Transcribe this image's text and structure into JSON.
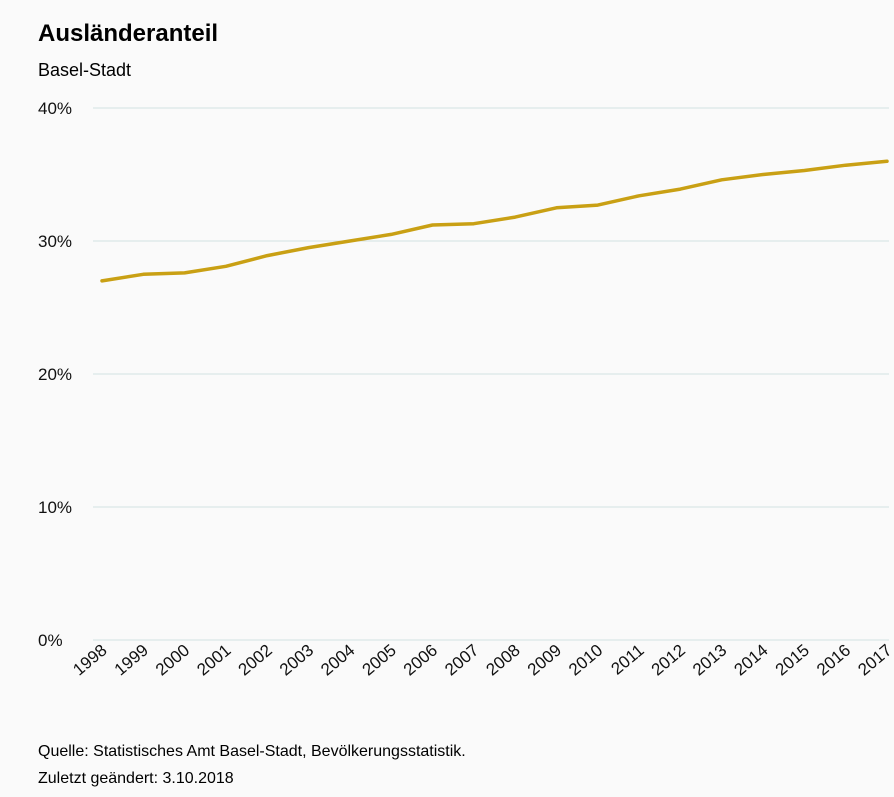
{
  "title": "Ausländeranteil",
  "subtitle": "Basel-Stadt",
  "source": "Quelle: Statistisches Amt Basel-Stadt, Bevölkerungsstatistik.",
  "updated": "Zuletzt geändert: 3.10.2018",
  "colors": {
    "line": "#c9a014",
    "grid": "#d3e1e3",
    "background": "#fafafa"
  },
  "chart_data": {
    "type": "line",
    "title": "Ausländeranteil",
    "subtitle": "Basel-Stadt",
    "xlabel": "",
    "ylabel": "",
    "x": [
      "1998",
      "1999",
      "2000",
      "2001",
      "2002",
      "2003",
      "2004",
      "2005",
      "2006",
      "2007",
      "2008",
      "2009",
      "2010",
      "2011",
      "2012",
      "2013",
      "2014",
      "2015",
      "2016",
      "2017"
    ],
    "series": [
      {
        "values": [
          27.0,
          27.5,
          27.6,
          28.1,
          28.9,
          29.5,
          30.0,
          30.5,
          31.2,
          31.3,
          31.8,
          32.5,
          32.7,
          33.4,
          33.9,
          34.6,
          35.0,
          35.3,
          35.7,
          36.0
        ]
      }
    ],
    "ylim": [
      0,
      40
    ],
    "yticks": [
      0,
      10,
      20,
      30,
      40
    ],
    "ytick_labels": [
      "0%",
      "10%",
      "20%",
      "30%",
      "40%"
    ],
    "grid": true,
    "legend": "none"
  }
}
